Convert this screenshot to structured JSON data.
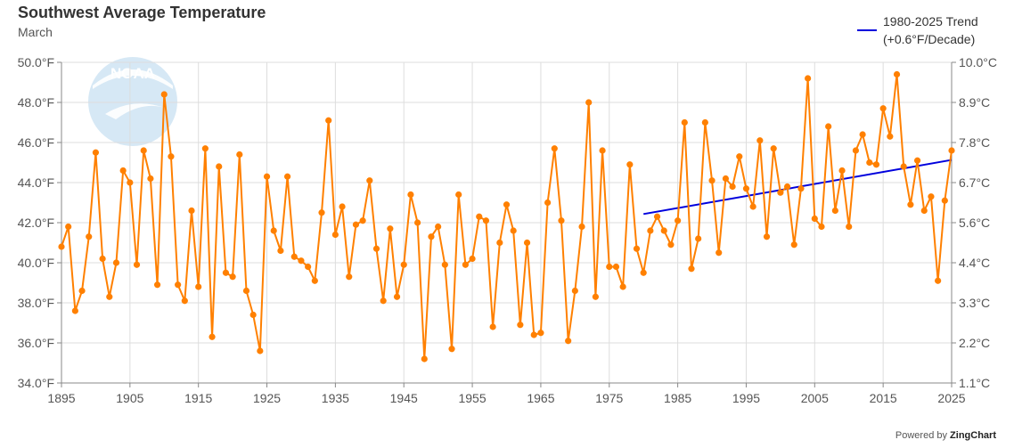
{
  "header": {
    "title": "Southwest Average Temperature",
    "subtitle": "March"
  },
  "legend": {
    "line1": "1980-2025 Trend",
    "line2": "(+0.6°F/Decade)"
  },
  "credit": {
    "prefix": "Powered by",
    "brand": "ZingChart"
  },
  "logo": {
    "text": "NOAA"
  },
  "colors": {
    "series": "#ff8000",
    "trend": "#0000dd",
    "grid": "#dddddd",
    "logo": "#c8dff0"
  },
  "chart_data": {
    "type": "line",
    "title": "Southwest Average Temperature",
    "subtitle": "March",
    "xlim": [
      1895,
      2025
    ],
    "ylim": [
      34,
      50
    ],
    "x_ticks": [
      "1895",
      "1905",
      "1915",
      "1925",
      "1935",
      "1945",
      "1955",
      "1965",
      "1975",
      "1985",
      "1995",
      "2005",
      "2015",
      "2025"
    ],
    "y_ticks_left": [
      "34.0°F",
      "36.0°F",
      "38.0°F",
      "40.0°F",
      "42.0°F",
      "44.0°F",
      "46.0°F",
      "48.0°F",
      "50.0°F"
    ],
    "y_ticks_right": [
      "1.1°C",
      "2.2°C",
      "3.3°C",
      "4.4°C",
      "5.6°C",
      "6.7°C",
      "7.8°C",
      "8.9°C",
      "10.0°C"
    ],
    "grid": true,
    "legend_position": "top-right",
    "start_year": 1895,
    "series": [
      {
        "values": [
          40.8,
          41.8,
          37.6,
          38.6,
          41.3,
          45.5,
          40.2,
          38.3,
          40.0,
          44.6,
          44.0,
          39.9,
          45.6,
          44.2,
          38.9,
          48.4,
          45.3,
          38.9,
          38.1,
          42.6,
          38.8,
          45.7,
          36.3,
          44.8,
          39.5,
          39.3,
          45.4,
          38.6,
          37.4,
          35.6,
          44.3,
          41.6,
          40.6,
          44.3,
          40.3,
          40.1,
          39.8,
          39.1,
          42.5,
          47.1,
          41.4,
          42.8,
          39.3,
          41.9,
          42.1,
          44.1,
          40.7,
          38.1,
          41.7,
          38.3,
          39.9,
          43.4,
          42.0,
          35.2,
          41.3,
          41.8,
          39.9,
          35.7,
          43.4,
          39.9,
          40.2,
          42.3,
          42.1,
          36.8,
          41.0,
          42.9,
          41.6,
          36.9,
          41.0,
          36.4,
          36.5,
          43.0,
          45.7,
          42.1,
          36.1,
          38.6,
          41.8,
          48.0,
          38.3,
          45.6,
          39.8,
          39.8,
          38.8,
          44.9,
          40.7,
          39.5,
          41.6,
          42.3,
          41.6,
          40.9,
          42.1,
          47.0,
          39.7,
          41.2,
          47.0,
          44.1,
          40.5,
          44.2,
          43.8,
          45.3,
          43.7,
          42.8,
          46.1,
          41.3,
          45.7,
          43.5,
          43.8,
          40.9,
          43.7,
          49.2,
          42.2,
          41.8,
          46.8,
          42.6,
          44.6,
          41.8,
          45.6,
          46.4,
          45.0,
          44.9,
          47.7,
          46.3,
          49.4,
          44.8,
          42.9,
          45.1,
          42.6,
          43.3,
          39.1,
          43.1,
          45.6
        ]
      }
    ],
    "trend": {
      "label": "1980-2025 Trend (+0.6°F/Decade)",
      "x": [
        1980,
        2025
      ],
      "y": [
        42.43,
        45.13
      ]
    }
  }
}
